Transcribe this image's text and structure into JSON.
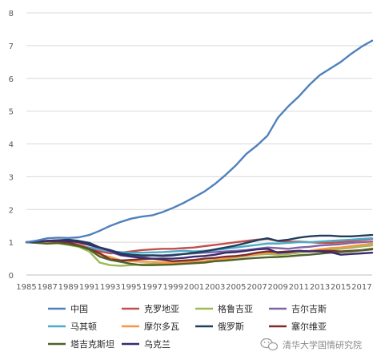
{
  "watermark": {
    "text": "清华大学国情研究院"
  },
  "chart_data": {
    "type": "line",
    "title": "",
    "xlabel": "",
    "ylabel": "",
    "ylim": [
      0,
      8
    ],
    "yticks": [
      0,
      1,
      2,
      3,
      4,
      5,
      6,
      7,
      8
    ],
    "grid": "horizontal",
    "legend_position": "bottom",
    "x": [
      1985,
      1986,
      1987,
      1988,
      1989,
      1990,
      1991,
      1992,
      1993,
      1994,
      1995,
      1996,
      1997,
      1998,
      1999,
      2000,
      2001,
      2002,
      2003,
      2004,
      2005,
      2006,
      2007,
      2008,
      2009,
      2010,
      2011,
      2012,
      2013,
      2014,
      2015,
      2016,
      2017,
      2018
    ],
    "xtick_labels": [
      "1985",
      "1987",
      "1989",
      "1991",
      "1993",
      "1995",
      "1997",
      "1999",
      "2001",
      "2003",
      "2005",
      "2007",
      "2009",
      "2011",
      "2013",
      "2015",
      "2017"
    ],
    "series": [
      {
        "name": "中国",
        "color": "#4F81BD",
        "values": [
          1.0,
          1.05,
          1.12,
          1.14,
          1.13,
          1.15,
          1.22,
          1.35,
          1.5,
          1.62,
          1.72,
          1.78,
          1.82,
          1.92,
          2.05,
          2.2,
          2.37,
          2.55,
          2.78,
          3.05,
          3.35,
          3.7,
          3.95,
          4.25,
          4.8,
          5.15,
          5.45,
          5.8,
          6.1,
          6.3,
          6.5,
          6.75,
          6.97,
          7.15
        ]
      },
      {
        "name": "克罗地亚",
        "color": "#C0504D",
        "values": [
          1.0,
          1.0,
          1.0,
          1.02,
          1.0,
          0.95,
          0.82,
          0.72,
          0.66,
          0.68,
          0.72,
          0.76,
          0.78,
          0.8,
          0.8,
          0.82,
          0.84,
          0.88,
          0.92,
          0.96,
          1.0,
          1.04,
          1.08,
          1.1,
          1.04,
          1.02,
          1.02,
          1.0,
          0.98,
          0.98,
          1.0,
          1.04,
          1.07,
          1.1
        ]
      },
      {
        "name": "格鲁吉亚",
        "color": "#9BBB59",
        "values": [
          1.0,
          0.98,
          0.96,
          0.97,
          0.92,
          0.86,
          0.72,
          0.38,
          0.3,
          0.28,
          0.3,
          0.32,
          0.34,
          0.36,
          0.37,
          0.38,
          0.4,
          0.42,
          0.46,
          0.49,
          0.54,
          0.58,
          0.62,
          0.64,
          0.62,
          0.64,
          0.68,
          0.72,
          0.74,
          0.77,
          0.8,
          0.83,
          0.87,
          0.9
        ]
      },
      {
        "name": "吉尔吉斯",
        "color": "#8064A2",
        "values": [
          1.0,
          1.0,
          1.02,
          1.04,
          1.06,
          1.02,
          0.92,
          0.82,
          0.7,
          0.6,
          0.56,
          0.56,
          0.6,
          0.6,
          0.62,
          0.64,
          0.66,
          0.68,
          0.7,
          0.72,
          0.74,
          0.76,
          0.8,
          0.84,
          0.82,
          0.8,
          0.84,
          0.86,
          0.9,
          0.92,
          0.94,
          0.98,
          1.0,
          1.02
        ]
      },
      {
        "name": "马其顿",
        "color": "#4BACC6",
        "values": [
          1.0,
          1.0,
          0.99,
          0.98,
          0.97,
          0.9,
          0.84,
          0.78,
          0.72,
          0.7,
          0.68,
          0.68,
          0.69,
          0.7,
          0.72,
          0.74,
          0.72,
          0.74,
          0.76,
          0.8,
          0.84,
          0.88,
          0.92,
          0.96,
          0.96,
          0.98,
          1.0,
          1.0,
          1.02,
          1.04,
          1.06,
          1.08,
          1.1,
          1.12
        ]
      },
      {
        "name": "摩尔多瓦",
        "color": "#F79646",
        "values": [
          1.0,
          1.02,
          1.0,
          1.02,
          1.0,
          0.94,
          0.8,
          0.62,
          0.55,
          0.45,
          0.42,
          0.4,
          0.4,
          0.38,
          0.37,
          0.38,
          0.4,
          0.42,
          0.45,
          0.5,
          0.55,
          0.6,
          0.64,
          0.68,
          0.66,
          0.68,
          0.72,
          0.74,
          0.78,
          0.82,
          0.84,
          0.88,
          0.92,
          0.96
        ]
      },
      {
        "name": "俄罗斯",
        "color": "#1F3F5F",
        "values": [
          1.0,
          1.02,
          1.04,
          1.06,
          1.08,
          1.04,
          0.98,
          0.84,
          0.76,
          0.66,
          0.62,
          0.6,
          0.6,
          0.58,
          0.6,
          0.64,
          0.68,
          0.72,
          0.78,
          0.84,
          0.9,
          0.98,
          1.06,
          1.12,
          1.04,
          1.08,
          1.14,
          1.18,
          1.2,
          1.2,
          1.18,
          1.18,
          1.2,
          1.22
        ]
      },
      {
        "name": "塞尔维亚",
        "color": "#7B2C2C",
        "values": [
          1.0,
          1.02,
          1.04,
          1.02,
          1.0,
          0.9,
          0.8,
          0.66,
          0.48,
          0.44,
          0.46,
          0.48,
          0.5,
          0.46,
          0.42,
          0.44,
          0.46,
          0.5,
          0.52,
          0.56,
          0.58,
          0.62,
          0.68,
          0.72,
          0.7,
          0.72,
          0.74,
          0.72,
          0.74,
          0.74,
          0.72,
          0.74,
          0.76,
          0.8
        ]
      },
      {
        "name": "塔吉克斯坦",
        "color": "#4F6228",
        "values": [
          1.0,
          0.98,
          0.96,
          0.98,
          0.94,
          0.88,
          0.78,
          0.56,
          0.46,
          0.4,
          0.34,
          0.3,
          0.3,
          0.31,
          0.32,
          0.34,
          0.36,
          0.38,
          0.42,
          0.44,
          0.47,
          0.5,
          0.52,
          0.54,
          0.55,
          0.57,
          0.6,
          0.62,
          0.65,
          0.68,
          0.7,
          0.72,
          0.75,
          0.78
        ]
      },
      {
        "name": "乌克兰",
        "color": "#3A2A6E",
        "values": [
          1.0,
          1.02,
          1.04,
          1.06,
          1.04,
          1.0,
          0.92,
          0.84,
          0.74,
          0.62,
          0.56,
          0.52,
          0.5,
          0.5,
          0.5,
          0.52,
          0.56,
          0.58,
          0.62,
          0.68,
          0.7,
          0.74,
          0.78,
          0.8,
          0.68,
          0.7,
          0.74,
          0.72,
          0.72,
          0.7,
          0.62,
          0.64,
          0.66,
          0.68
        ]
      }
    ]
  }
}
